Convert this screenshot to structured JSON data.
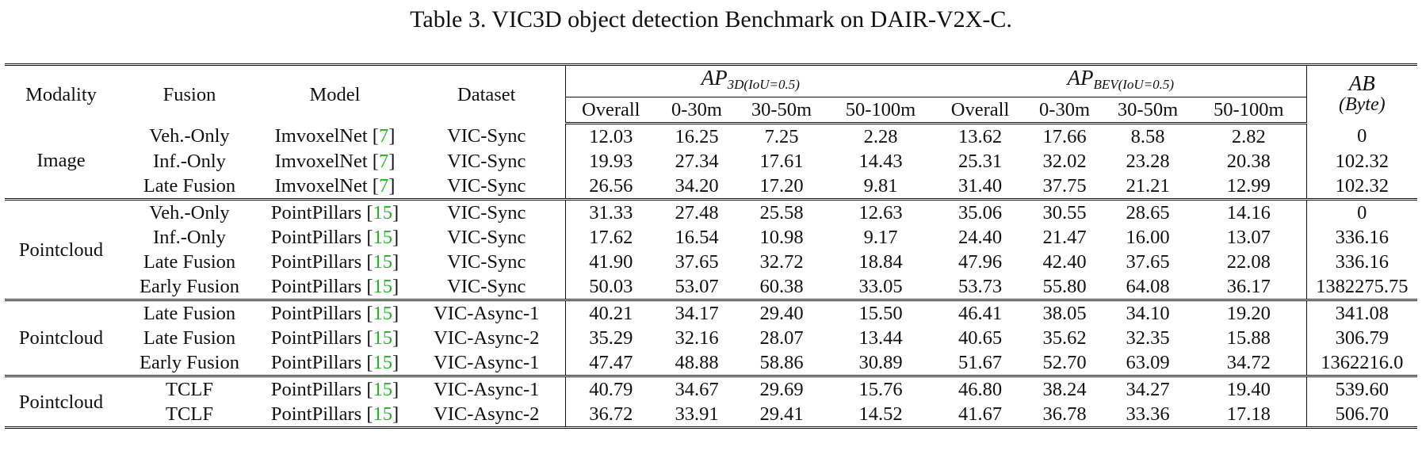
{
  "caption": "Table 3. VIC3D object detection Benchmark on DAIR-V2X-C.",
  "headers": {
    "modality": "Modality",
    "fusion": "Fusion",
    "model": "Model",
    "dataset": "Dataset",
    "ap3d": {
      "base": "AP",
      "sub": "3D(IoU=0.5)"
    },
    "apbev": {
      "base": "AP",
      "sub": "BEV(IoU=0.5)"
    },
    "ab": {
      "line1": "AB",
      "line2": "(Byte)"
    },
    "sub_columns": [
      "Overall",
      "0-30m",
      "30-50m",
      "50-100m"
    ]
  },
  "groups": [
    {
      "modality": "Image",
      "rows": [
        {
          "fusion": "Veh.-Only",
          "model": "ImvoxelNet",
          "ref": "7",
          "dataset": "VIC-Sync",
          "ap3d": [
            "12.03",
            "16.25",
            "7.25",
            "2.28"
          ],
          "apbev": [
            "13.62",
            "17.66",
            "8.58",
            "2.82"
          ],
          "ab": "0"
        },
        {
          "fusion": "Inf.-Only",
          "model": "ImvoxelNet",
          "ref": "7",
          "dataset": "VIC-Sync",
          "ap3d": [
            "19.93",
            "27.34",
            "17.61",
            "14.43"
          ],
          "apbev": [
            "25.31",
            "32.02",
            "23.28",
            "20.38"
          ],
          "ab": "102.32"
        },
        {
          "fusion": "Late Fusion",
          "model": "ImvoxelNet",
          "ref": "7",
          "dataset": "VIC-Sync",
          "ap3d": [
            "26.56",
            "34.20",
            "17.20",
            "9.81"
          ],
          "apbev": [
            "31.40",
            "37.75",
            "21.21",
            "12.99"
          ],
          "ab": "102.32"
        }
      ]
    },
    {
      "modality": "Pointcloud",
      "rows": [
        {
          "fusion": "Veh.-Only",
          "model": "PointPillars",
          "ref": "15",
          "dataset": "VIC-Sync",
          "ap3d": [
            "31.33",
            "27.48",
            "25.58",
            "12.63"
          ],
          "apbev": [
            "35.06",
            "30.55",
            "28.65",
            "14.16"
          ],
          "ab": "0"
        },
        {
          "fusion": "Inf.-Only",
          "model": "PointPillars",
          "ref": "15",
          "dataset": "VIC-Sync",
          "ap3d": [
            "17.62",
            "16.54",
            "10.98",
            "9.17"
          ],
          "apbev": [
            "24.40",
            "21.47",
            "16.00",
            "13.07"
          ],
          "ab": "336.16"
        },
        {
          "fusion": "Late Fusion",
          "model": "PointPillars",
          "ref": "15",
          "dataset": "VIC-Sync",
          "ap3d": [
            "41.90",
            "37.65",
            "32.72",
            "18.84"
          ],
          "apbev": [
            "47.96",
            "42.40",
            "37.65",
            "22.08"
          ],
          "ab": "336.16"
        },
        {
          "fusion": "Early Fusion",
          "model": "PointPillars",
          "ref": "15",
          "dataset": "VIC-Sync",
          "ap3d": [
            "50.03",
            "53.07",
            "60.38",
            "33.05"
          ],
          "apbev": [
            "53.73",
            "55.80",
            "64.08",
            "36.17"
          ],
          "ab": "1382275.75"
        }
      ]
    },
    {
      "modality": "Pointcloud",
      "rows": [
        {
          "fusion": "Late Fusion",
          "model": "PointPillars",
          "ref": "15",
          "dataset": "VIC-Async-1",
          "ap3d": [
            "40.21",
            "34.17",
            "29.40",
            "15.50"
          ],
          "apbev": [
            "46.41",
            "38.05",
            "34.10",
            "19.20"
          ],
          "ab": "341.08"
        },
        {
          "fusion": "Late Fusion",
          "model": "PointPillars",
          "ref": "15",
          "dataset": "VIC-Async-2",
          "ap3d": [
            "35.29",
            "32.16",
            "28.07",
            "13.44"
          ],
          "apbev": [
            "40.65",
            "35.62",
            "32.35",
            "15.88"
          ],
          "ab": "306.79"
        },
        {
          "fusion": "Early Fusion",
          "model": "PointPillars",
          "ref": "15",
          "dataset": "VIC-Async-1",
          "ap3d": [
            "47.47",
            "48.88",
            "58.86",
            "30.89"
          ],
          "apbev": [
            "51.67",
            "52.70",
            "63.09",
            "34.72"
          ],
          "ab": "1362216.0"
        }
      ]
    },
    {
      "modality": "Pointcloud",
      "rows": [
        {
          "fusion": "TCLF",
          "model": "PointPillars",
          "ref": "15",
          "dataset": "VIC-Async-1",
          "ap3d": [
            "40.79",
            "34.67",
            "29.69",
            "15.76"
          ],
          "apbev": [
            "46.80",
            "38.24",
            "34.27",
            "19.40"
          ],
          "ab": "539.60"
        },
        {
          "fusion": "TCLF",
          "model": "PointPillars",
          "ref": "15",
          "dataset": "VIC-Async-2",
          "ap3d": [
            "36.72",
            "33.91",
            "29.41",
            "14.52"
          ],
          "apbev": [
            "41.67",
            "36.78",
            "33.36",
            "17.18"
          ],
          "ab": "506.70"
        }
      ]
    }
  ],
  "colors": {
    "reference": "#22b722",
    "text": "#111111"
  }
}
